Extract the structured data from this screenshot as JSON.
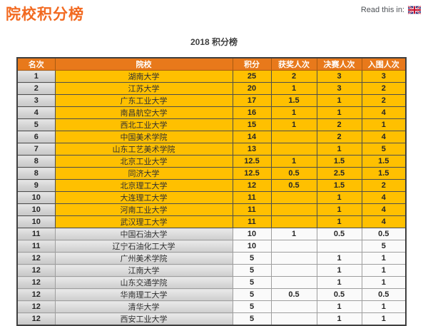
{
  "page": {
    "title": "院校积分榜",
    "read_this_in_label": "Read this in:",
    "subtitle": "2018 积分榜"
  },
  "colors": {
    "title_orange": "#F26A21",
    "header_bg": "#E8791B",
    "gold_row": "#FFC000",
    "gray_cell": "#D9D9D9"
  },
  "table": {
    "columns": [
      "名次",
      "院校",
      "积分",
      "获奖人次",
      "决赛人次",
      "入围人次"
    ],
    "row_keys": [
      "rank",
      "school",
      "points",
      "awards",
      "finals",
      "shortlist"
    ],
    "rows": [
      {
        "rank": "1",
        "school": "湖南大学",
        "points": "25",
        "awards": "2",
        "finals": "3",
        "shortlist": "3",
        "tier": "gold"
      },
      {
        "rank": "2",
        "school": "江苏大学",
        "points": "20",
        "awards": "1",
        "finals": "3",
        "shortlist": "2",
        "tier": "gold"
      },
      {
        "rank": "3",
        "school": "广东工业大学",
        "points": "17",
        "awards": "1.5",
        "finals": "1",
        "shortlist": "2",
        "tier": "gold"
      },
      {
        "rank": "4",
        "school": "南昌航空大学",
        "points": "16",
        "awards": "1",
        "finals": "1",
        "shortlist": "4",
        "tier": "gold"
      },
      {
        "rank": "5",
        "school": "西北工业大学",
        "points": "15",
        "awards": "1",
        "finals": "2",
        "shortlist": "1",
        "tier": "gold"
      },
      {
        "rank": "6",
        "school": "中国美术学院",
        "points": "14",
        "awards": "",
        "finals": "2",
        "shortlist": "4",
        "tier": "gold"
      },
      {
        "rank": "7",
        "school": "山东工艺美术学院",
        "points": "13",
        "awards": "",
        "finals": "1",
        "shortlist": "5",
        "tier": "gold"
      },
      {
        "rank": "8",
        "school": "北京工业大学",
        "points": "12.5",
        "awards": "1",
        "finals": "1.5",
        "shortlist": "1.5",
        "tier": "gold"
      },
      {
        "rank": "8",
        "school": "同济大学",
        "points": "12.5",
        "awards": "0.5",
        "finals": "2.5",
        "shortlist": "1.5",
        "tier": "gold"
      },
      {
        "rank": "9",
        "school": "北京理工大学",
        "points": "12",
        "awards": "0.5",
        "finals": "1.5",
        "shortlist": "2",
        "tier": "gold"
      },
      {
        "rank": "10",
        "school": "大连理工大学",
        "points": "11",
        "awards": "",
        "finals": "1",
        "shortlist": "4",
        "tier": "gold"
      },
      {
        "rank": "10",
        "school": "河南工业大学",
        "points": "11",
        "awards": "",
        "finals": "1",
        "shortlist": "4",
        "tier": "gold"
      },
      {
        "rank": "10",
        "school": "武汉理工大学",
        "points": "11",
        "awards": "",
        "finals": "1",
        "shortlist": "4",
        "tier": "gold"
      },
      {
        "rank": "11",
        "school": "中国石油大学",
        "points": "10",
        "awards": "1",
        "finals": "0.5",
        "shortlist": "0.5",
        "tier": "gray"
      },
      {
        "rank": "11",
        "school": "辽宁石油化工大学",
        "points": "10",
        "awards": "",
        "finals": "",
        "shortlist": "5",
        "tier": "gray"
      },
      {
        "rank": "12",
        "school": "广州美术学院",
        "points": "5",
        "awards": "",
        "finals": "1",
        "shortlist": "1",
        "tier": "gray"
      },
      {
        "rank": "12",
        "school": "江南大学",
        "points": "5",
        "awards": "",
        "finals": "1",
        "shortlist": "1",
        "tier": "gray"
      },
      {
        "rank": "12",
        "school": "山东交通学院",
        "points": "5",
        "awards": "",
        "finals": "1",
        "shortlist": "1",
        "tier": "gray"
      },
      {
        "rank": "12",
        "school": "华南理工大学",
        "points": "5",
        "awards": "0.5",
        "finals": "0.5",
        "shortlist": "0.5",
        "tier": "gray"
      },
      {
        "rank": "12",
        "school": "清华大学",
        "points": "5",
        "awards": "",
        "finals": "1",
        "shortlist": "1",
        "tier": "gray"
      },
      {
        "rank": "12",
        "school": "西安工业大学",
        "points": "5",
        "awards": "",
        "finals": "1",
        "shortlist": "1",
        "tier": "gray"
      }
    ]
  }
}
